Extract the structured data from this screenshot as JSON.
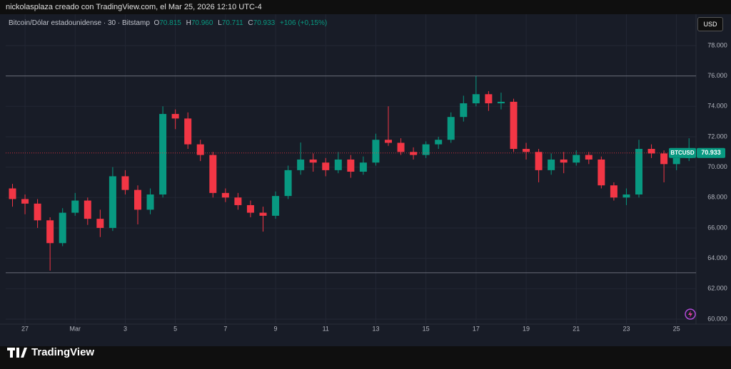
{
  "header": {
    "credit": "nickolasplaza creado con TradingView.com, el Mar 25, 2026 12:10 UTC-4",
    "symbol": "Bitcoin/Dólar estadounidense · 30 · Bitstamp",
    "o_label": "O",
    "o": "70.815",
    "h_label": "H",
    "h": "70.960",
    "l_label": "L",
    "l": "70.711",
    "c_label": "C",
    "c": "70.933",
    "change": "+106 (+0,15%)",
    "currency": "USD"
  },
  "footer": {
    "brand": "TradingView"
  },
  "chart_data": {
    "type": "candlestick",
    "categories": [
      null,
      "27",
      null,
      null,
      null,
      "Mar",
      null,
      null,
      null,
      "3",
      null,
      null,
      null,
      "5",
      null,
      null,
      null,
      "7",
      null,
      null,
      null,
      "9",
      null,
      null,
      null,
      "11",
      null,
      null,
      null,
      "13",
      null,
      null,
      null,
      "15",
      null,
      null,
      null,
      "17",
      null,
      null,
      null,
      "19",
      null,
      null,
      null,
      "21",
      null,
      null,
      null,
      "23",
      null,
      null,
      null,
      "25",
      null
    ],
    "ohlc": [
      [
        68600,
        68900,
        67400,
        67900
      ],
      [
        67900,
        68200,
        66900,
        67600
      ],
      [
        67600,
        67900,
        66000,
        66500
      ],
      [
        66500,
        66700,
        63190,
        65000
      ],
      [
        65000,
        67300,
        64800,
        67000
      ],
      [
        67000,
        68300,
        66800,
        67800
      ],
      [
        67800,
        68000,
        66200,
        66600
      ],
      [
        66600,
        67200,
        65400,
        66000
      ],
      [
        66000,
        70000,
        65800,
        69400
      ],
      [
        69400,
        69800,
        68200,
        68500
      ],
      [
        68500,
        68800,
        66230,
        67200
      ],
      [
        67200,
        68600,
        66900,
        68200
      ],
      [
        68200,
        74000,
        68000,
        73500
      ],
      [
        73500,
        73800,
        72500,
        73200
      ],
      [
        73200,
        73600,
        71200,
        71500
      ],
      [
        71500,
        71800,
        70400,
        70800
      ],
      [
        70800,
        71000,
        68000,
        68300
      ],
      [
        68300,
        68600,
        67700,
        68000
      ],
      [
        68000,
        68300,
        67200,
        67500
      ],
      [
        67500,
        67800,
        66700,
        67000
      ],
      [
        67000,
        67400,
        65760,
        66800
      ],
      [
        66800,
        68400,
        66600,
        68100
      ],
      [
        68100,
        70100,
        67900,
        69800
      ],
      [
        69800,
        71620,
        69500,
        70500
      ],
      [
        70500,
        70900,
        69700,
        70300
      ],
      [
        70300,
        70600,
        69400,
        69800
      ],
      [
        69800,
        71000,
        69600,
        70500
      ],
      [
        70500,
        70800,
        69300,
        69700
      ],
      [
        69700,
        70700,
        69500,
        70300
      ],
      [
        70300,
        72200,
        70100,
        71800
      ],
      [
        71800,
        74000,
        71400,
        71600
      ],
      [
        71600,
        71900,
        70800,
        71000
      ],
      [
        71000,
        71300,
        70500,
        70800
      ],
      [
        70800,
        71700,
        70600,
        71500
      ],
      [
        71500,
        72000,
        71200,
        71800
      ],
      [
        71800,
        73600,
        71600,
        73300
      ],
      [
        73300,
        74700,
        73000,
        74200
      ],
      [
        74200,
        76000,
        74000,
        74800
      ],
      [
        74800,
        75000,
        73700,
        74200
      ],
      [
        74200,
        74900,
        73800,
        74300
      ],
      [
        74300,
        74500,
        71000,
        71200
      ],
      [
        71200,
        71600,
        70500,
        71000
      ],
      [
        71000,
        71200,
        69000,
        69800
      ],
      [
        69800,
        70900,
        69500,
        70500
      ],
      [
        70500,
        71000,
        69600,
        70300
      ],
      [
        70300,
        71100,
        70100,
        70800
      ],
      [
        70800,
        71000,
        70200,
        70500
      ],
      [
        70500,
        70700,
        68600,
        68800
      ],
      [
        68800,
        69000,
        67800,
        68000
      ],
      [
        68000,
        68600,
        67500,
        68200
      ],
      [
        68200,
        71800,
        68000,
        71200
      ],
      [
        71200,
        71500,
        70600,
        70900
      ],
      [
        70900,
        71100,
        69000,
        70200
      ],
      [
        70200,
        71000,
        69800,
        70600
      ],
      [
        70600,
        71900,
        70400,
        70933
      ]
    ],
    "up_color": "#089981",
    "down_color": "#f23645",
    "ylim": [
      59670,
      80060
    ],
    "yticks": [
      {
        "value": 60000,
        "label": "60.000"
      },
      {
        "value": 62000,
        "label": "62.000"
      },
      {
        "value": 64000,
        "label": "64.000"
      },
      {
        "value": 66000,
        "label": "66.000"
      },
      {
        "value": 68000,
        "label": "68.000"
      },
      {
        "value": 70000,
        "label": "70.000"
      },
      {
        "value": 72000,
        "label": "72.000"
      },
      {
        "value": 74000,
        "label": "74.000"
      },
      {
        "value": 76000,
        "label": "76.000"
      },
      {
        "value": 78000,
        "label": "78.000"
      }
    ],
    "grid": true,
    "horizontal_lines": [
      76000,
      63050
    ],
    "last_price": {
      "value": 70933,
      "label": "70.933",
      "symbol": "BTCUSD"
    }
  }
}
